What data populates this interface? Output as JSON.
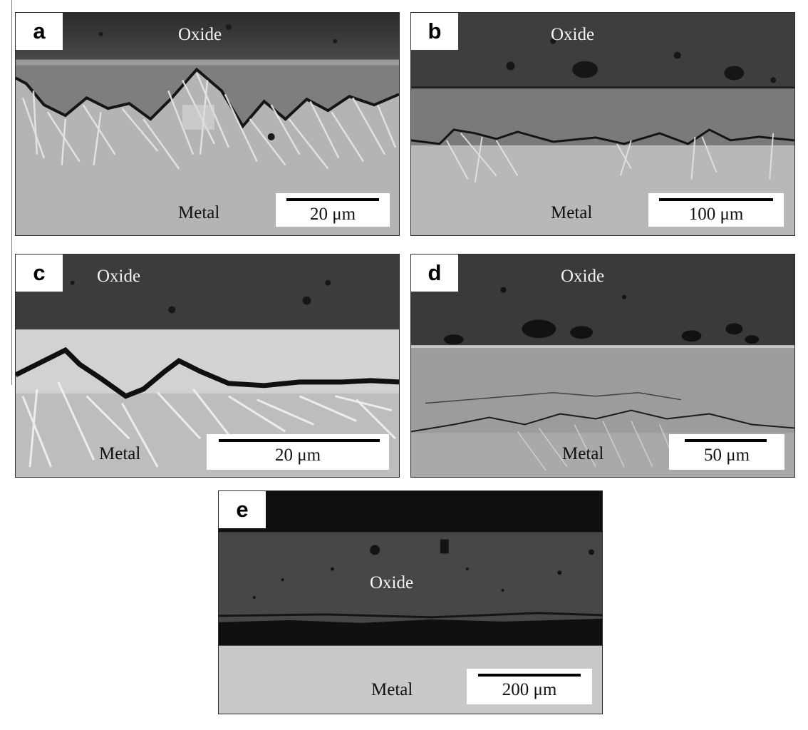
{
  "figure": {
    "panels": [
      {
        "id": "a",
        "letter": "a",
        "top_label": "Oxide",
        "bottom_label": "Metal",
        "scale": "20 μm"
      },
      {
        "id": "b",
        "letter": "b",
        "top_label": "Oxide",
        "bottom_label": "Metal",
        "scale": "100 μm"
      },
      {
        "id": "c",
        "letter": "c",
        "top_label": "Oxide",
        "bottom_label": "Metal",
        "scale": "20 μm"
      },
      {
        "id": "d",
        "letter": "d",
        "top_label": "Oxide",
        "bottom_label": "Metal",
        "scale": "50 μm"
      },
      {
        "id": "e",
        "letter": "e",
        "top_label": "Oxide",
        "bottom_label": "Metal",
        "scale": "200 μm"
      }
    ]
  }
}
